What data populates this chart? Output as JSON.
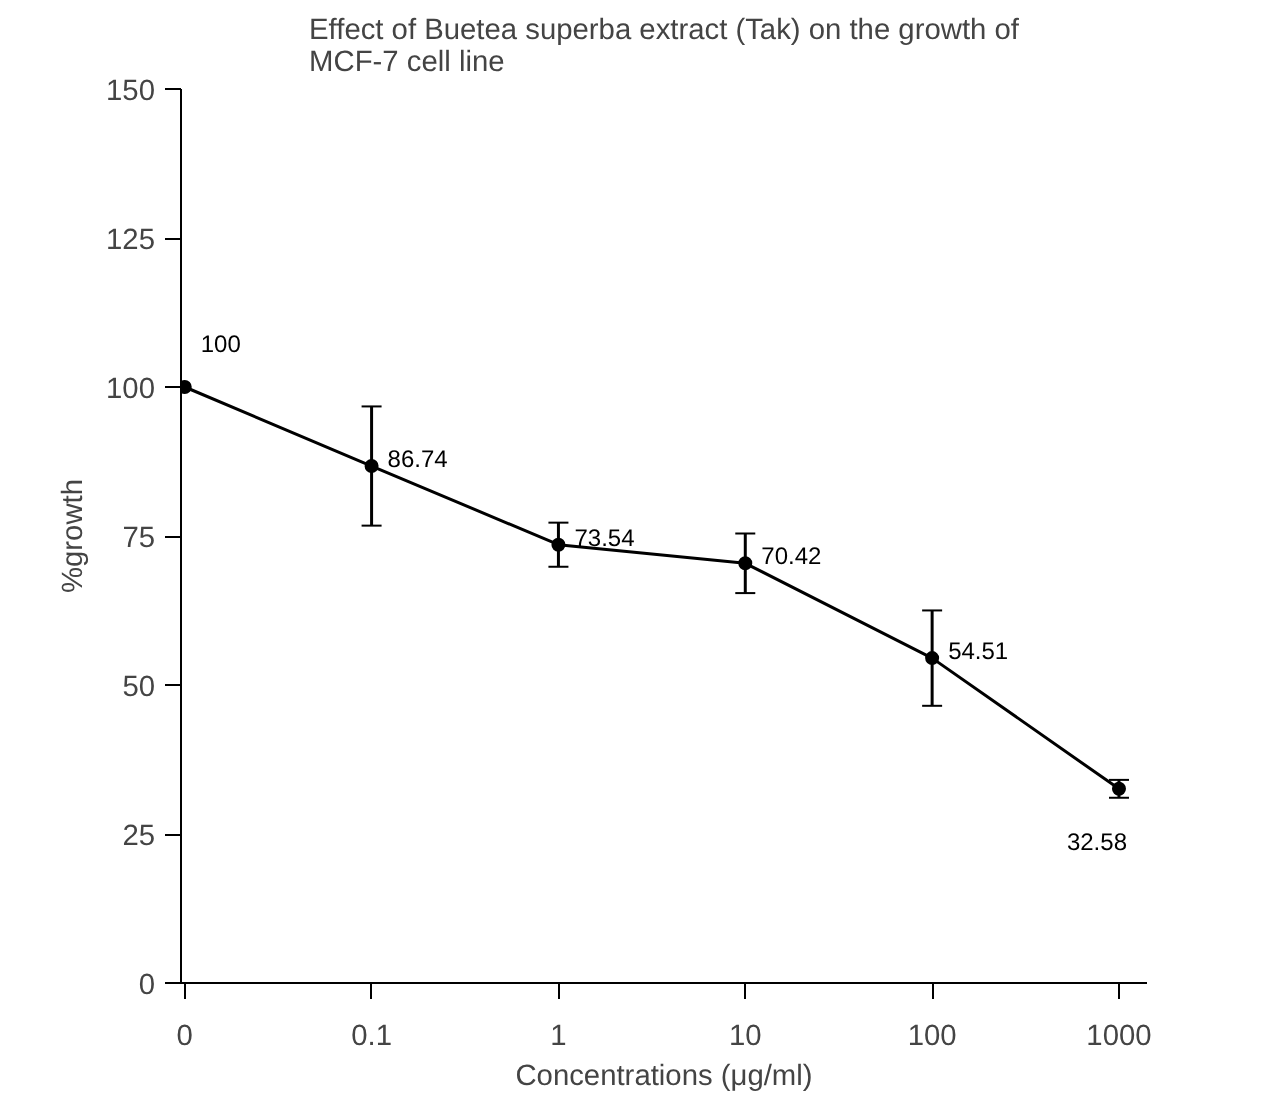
{
  "chart_data": {
    "type": "line",
    "title": "Effect of Buetea superba extract (Tak) on the growth of MCF-7 cell line",
    "xlabel": "Concentrations (μg/ml)",
    "ylabel": "%growth",
    "categories": [
      "0",
      "0.1",
      "1",
      "10",
      "100",
      "1000"
    ],
    "series": [
      {
        "color": "#000000",
        "values": [
          100,
          86.74,
          73.54,
          70.42,
          54.51,
          32.58
        ],
        "errors": [
          null,
          10,
          3.7,
          5,
          8,
          1.5
        ]
      }
    ],
    "ylim": [
      0,
      150
    ],
    "yticks": [
      0,
      25,
      50,
      75,
      100,
      125,
      150
    ],
    "data_labels": true,
    "marker": "circle",
    "line_style": "solid",
    "grid": false
  }
}
